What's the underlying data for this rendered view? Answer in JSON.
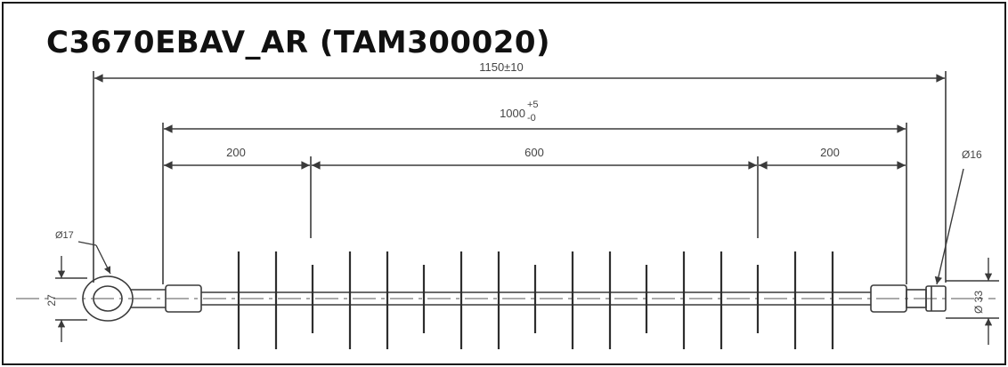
{
  "title": "C3670EBAV_AR (TAM300020)",
  "dimensions": {
    "overall": "1150±10",
    "section_base": "1000",
    "section_tol_plus": "+5",
    "section_tol_minus": "-0",
    "left_segment": "200",
    "middle_segment": "600",
    "right_segment": "200",
    "right_diameter": "Ø16",
    "left_diameter": "Ø17",
    "left_height": "27",
    "right_height": "Ø 33"
  },
  "colors": {
    "line": "#3a3a3a",
    "border": "#1a1a1a"
  }
}
